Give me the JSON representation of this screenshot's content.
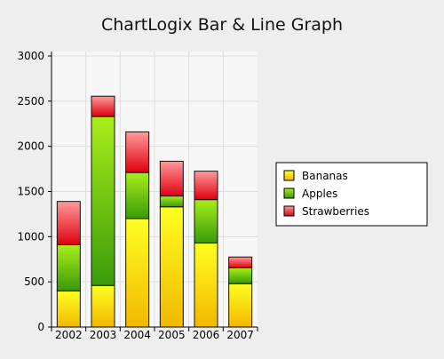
{
  "chart_data": {
    "type": "bar",
    "stacked": true,
    "title": "ChartLogix Bar & Line Graph",
    "categories": [
      "2002",
      "2003",
      "2004",
      "2005",
      "2006",
      "2007"
    ],
    "series": [
      {
        "name": "Bananas",
        "values": [
          400,
          460,
          1200,
          1330,
          930,
          480
        ]
      },
      {
        "name": "Apples",
        "values": [
          510,
          1870,
          510,
          120,
          480,
          175
        ]
      },
      {
        "name": "Strawberries",
        "values": [
          480,
          225,
          450,
          385,
          315,
          120
        ]
      }
    ],
    "ylim": [
      0,
      3000
    ],
    "yticks": [
      0,
      500,
      1000,
      1500,
      2000,
      2500,
      3000
    ],
    "grid": true,
    "legend_position": "right",
    "colors": {
      "background": "#eeeeee",
      "plot_background": "#f7f7f7",
      "grid": "#dddddd",
      "Bananas": [
        "#ffff22",
        "#f2b800"
      ],
      "Apples": [
        "#a8ee1a",
        "#3a9a08"
      ],
      "Strawberries": [
        "#ff9a9a",
        "#e00010"
      ]
    }
  }
}
